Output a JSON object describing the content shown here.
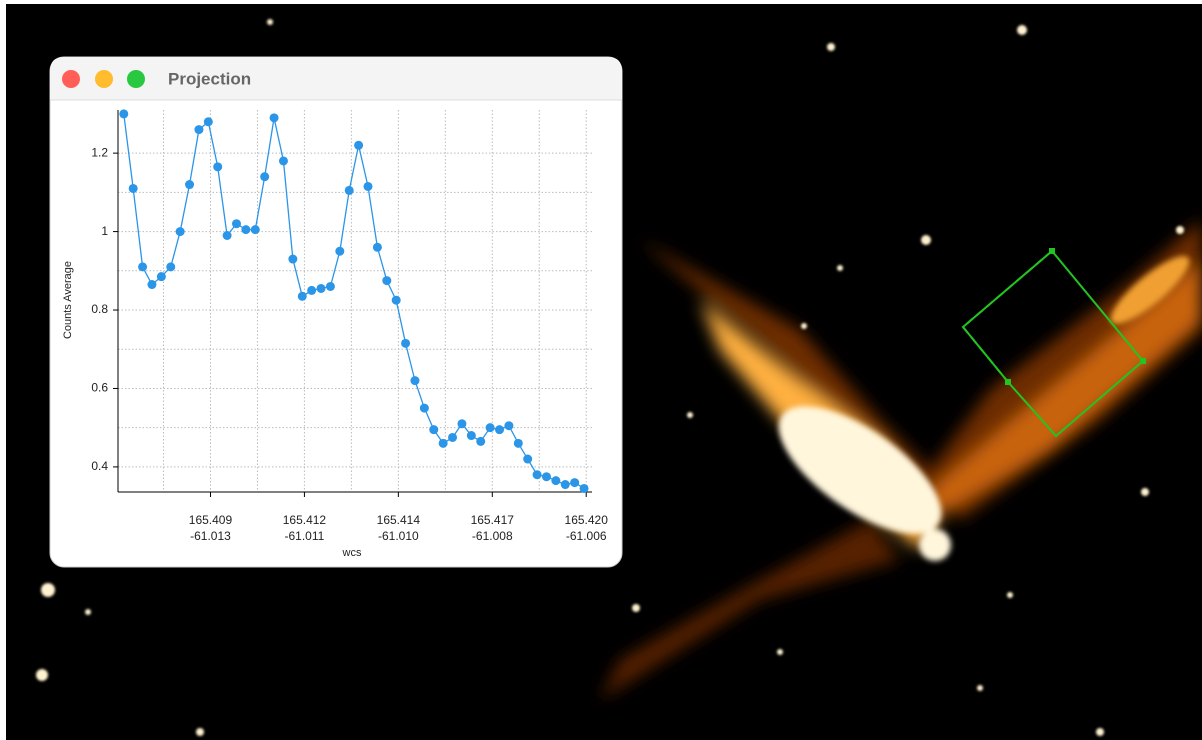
{
  "window": {
    "title": "Projection"
  },
  "chart_data": {
    "type": "line",
    "x_label": "wcs",
    "y_label": "Counts Average",
    "x": [
      165.4068,
      165.40706,
      165.40732,
      165.40758,
      165.40784,
      165.4081,
      165.40836,
      165.40862,
      165.40888,
      165.40914,
      165.4094,
      165.40966,
      165.40992,
      165.41018,
      165.41044,
      165.4107,
      165.41096,
      165.41122,
      165.41148,
      165.41174,
      165.412,
      165.41226,
      165.41252,
      165.41278,
      165.41304,
      165.4133,
      165.41356,
      165.41382,
      165.41408,
      165.41434,
      165.4146,
      165.41486,
      165.41512,
      165.41538,
      165.41564,
      165.4159,
      165.41616,
      165.41642,
      165.41668,
      165.41694,
      165.4172,
      165.41746,
      165.41772,
      165.41798,
      165.41824,
      165.4185,
      165.41876,
      165.41902,
      165.41928,
      165.41954
    ],
    "series": [
      {
        "color": "#2b95e8",
        "values": [
          1.3,
          1.11,
          0.91,
          0.865,
          0.885,
          0.91,
          1.0,
          1.12,
          1.26,
          1.28,
          1.165,
          0.99,
          1.02,
          1.005,
          1.005,
          1.14,
          1.29,
          1.18,
          0.93,
          0.835,
          0.85,
          0.855,
          0.86,
          0.95,
          1.105,
          1.22,
          1.115,
          0.96,
          0.875,
          0.825,
          0.715,
          0.62,
          0.55,
          0.495,
          0.46,
          0.475,
          0.51,
          0.48,
          0.465,
          0.5,
          0.495,
          0.505,
          0.46,
          0.42,
          0.38,
          0.375,
          0.365,
          0.355,
          0.36,
          0.345
        ]
      }
    ],
    "xlim": [
      165.40664,
      165.41976
    ],
    "ylim": [
      0.336,
      1.31
    ],
    "xticks": [
      {
        "value": 165.4092,
        "label": "165.409"
      },
      {
        "value": 165.4118,
        "label": "165.412"
      },
      {
        "value": 165.4144,
        "label": "165.414"
      },
      {
        "value": 165.417,
        "label": "165.417"
      },
      {
        "value": 165.4196,
        "label": "165.420"
      }
    ],
    "xticks_second_line": [
      "-61.013",
      "-61.011",
      "-61.010",
      "-61.008",
      "-61.006"
    ],
    "x_minor_ticks": [
      165.4079,
      165.4105,
      165.4131,
      165.4157,
      165.4183
    ],
    "yticks": [
      {
        "value": 0.4,
        "label": "0.4"
      },
      {
        "value": 0.6,
        "label": "0.6"
      },
      {
        "value": 0.8,
        "label": "0.8"
      },
      1,
      {
        "value": 1.2,
        "label": "1.2"
      }
    ],
    "y_minor_ticks": [
      0.5,
      0.7,
      0.9,
      1.1
    ],
    "grid": true
  }
}
